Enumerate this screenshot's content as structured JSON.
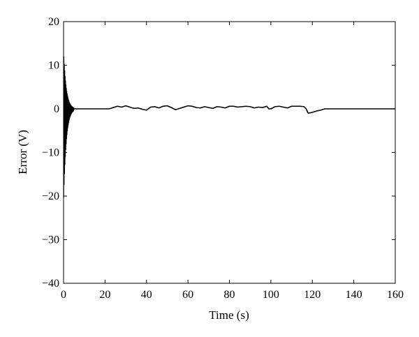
{
  "chart_data": {
    "type": "line",
    "xlabel": "Time (s)",
    "ylabel": "Error (V)",
    "xlim": [
      0,
      160
    ],
    "ylim": [
      -40,
      20
    ],
    "xticks": [
      0,
      20,
      40,
      60,
      80,
      100,
      120,
      140,
      160
    ],
    "yticks": [
      -40,
      -30,
      -20,
      -10,
      0,
      10,
      20
    ],
    "ytick_labels": [
      "−40",
      "−30",
      "−20",
      "−10",
      "0",
      "10",
      "20"
    ],
    "grid": false,
    "legend": "none",
    "line_color": "#000000",
    "transient": {
      "t_start": 0,
      "t_end": 5,
      "peak_positive": 14,
      "peak_negative": -22,
      "decay_time_constant_s": 1.3,
      "oscillation_half_period_s": 0.1
    },
    "series": [
      {
        "x": [
          5,
          22,
          24,
          26,
          28,
          30,
          32,
          34,
          36,
          38,
          40,
          42,
          44,
          46,
          48,
          50,
          52,
          54,
          56,
          58,
          60,
          62,
          64,
          66,
          68,
          70,
          72,
          74,
          76,
          78,
          80,
          82,
          84,
          86,
          88,
          90,
          92,
          94,
          96,
          98,
          99,
          100,
          102,
          104,
          106,
          108,
          110,
          112,
          114,
          116,
          117,
          118,
          120,
          122,
          124,
          126,
          128,
          160
        ],
        "y": [
          0,
          0,
          0.3,
          0.6,
          0.4,
          0.7,
          0.4,
          0.1,
          0.2,
          -0.1,
          -0.3,
          0.4,
          0.5,
          0.2,
          0.6,
          0.7,
          0.3,
          -0.2,
          0.1,
          0.4,
          0.7,
          0.6,
          0.3,
          0.2,
          0.5,
          0.3,
          0.1,
          0.5,
          0.4,
          0.2,
          0.6,
          0.6,
          0.4,
          0.5,
          0.6,
          0.5,
          0.2,
          0.4,
          0.3,
          0.6,
          0.0,
          0.0,
          0.5,
          0.6,
          0.4,
          0.2,
          0.6,
          0.6,
          0.6,
          0.5,
          0.0,
          -1.0,
          -0.8,
          -0.5,
          -0.3,
          0.0,
          0.0,
          0.0
        ]
      }
    ]
  }
}
